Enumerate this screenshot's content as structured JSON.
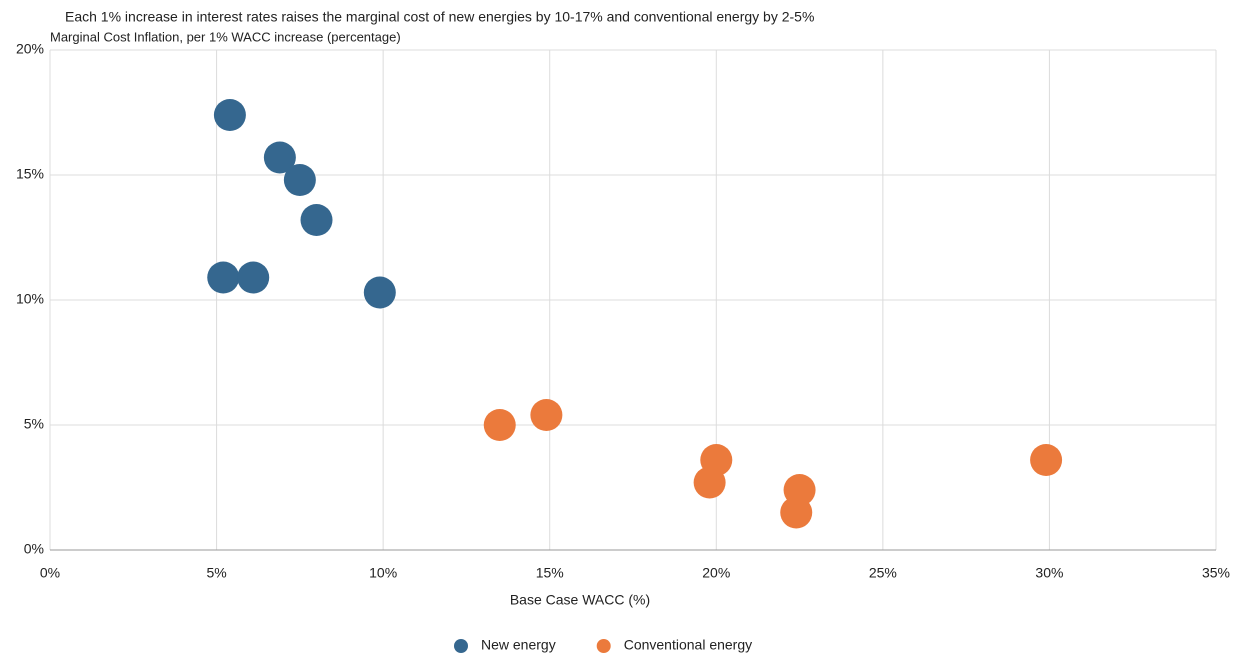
{
  "chart_data": {
    "type": "scatter",
    "title": "Each 1% increase in interest rates raises the marginal cost of new energies by 10-17% and conventional energy by 2-5%",
    "subtitle": "Marginal Cost Inflation,  per 1% WACC increase (percentage)",
    "x_label": "Base Case WACC (%)",
    "series": [
      {
        "name": "New energy",
        "color": "#35678f",
        "x": [
          5.4,
          6.9,
          7.5,
          8.0,
          5.2,
          6.1,
          9.9
        ],
        "values": [
          17.4,
          15.7,
          14.8,
          13.2,
          10.9,
          10.9,
          10.3
        ]
      },
      {
        "name": "Conventional energy",
        "color": "#eb7a3c",
        "x": [
          13.5,
          14.9,
          20.0,
          19.8,
          22.5,
          22.4,
          29.9
        ],
        "values": [
          5.0,
          5.4,
          3.6,
          2.7,
          2.4,
          1.5,
          3.6
        ]
      }
    ],
    "xlim": [
      0,
      35
    ],
    "xticks": [
      {
        "value": 0,
        "label": "0%"
      },
      {
        "value": 5,
        "label": "5%"
      },
      {
        "value": 10,
        "label": "10%"
      },
      {
        "value": 15,
        "label": "15%"
      },
      {
        "value": 20,
        "label": "20%"
      },
      {
        "value": 25,
        "label": "25%"
      },
      {
        "value": 30,
        "label": "30%"
      },
      {
        "value": 35,
        "label": "35%"
      }
    ],
    "ylim": [
      0,
      20
    ],
    "yticks": [
      {
        "value": 0,
        "label": "0%"
      },
      {
        "value": 5,
        "label": "5%"
      },
      {
        "value": 10,
        "label": "10%"
      },
      {
        "value": 15,
        "label": "15%"
      },
      {
        "value": 20,
        "label": "20%"
      }
    ],
    "grid": true,
    "legend": "bottom"
  }
}
